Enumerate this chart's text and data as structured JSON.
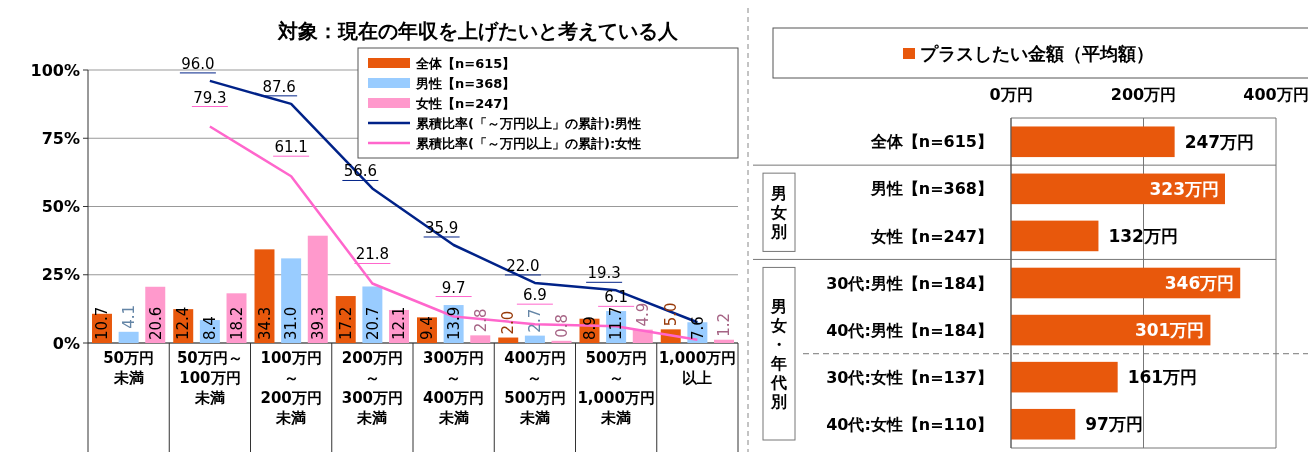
{
  "chart_data": [
    {
      "type": "bar",
      "title": "対象：現在の年収を上げたいと考えている人",
      "categories": [
        "50万円未満",
        "50万円～100万円未満",
        "100万円～200万円未満",
        "200万円～300万円未満",
        "300万円～400万円未満",
        "400万円～500万円未満",
        "500万円～1,000万円未満",
        "1,000万円以上"
      ],
      "series": [
        {
          "name": "全体【n=615】",
          "color": "#e8580c",
          "values": [
            10.7,
            12.4,
            34.3,
            17.2,
            9.4,
            2.0,
            8.9,
            5.0
          ],
          "value_labels": [
            "10.7",
            "12.4",
            "34.3",
            "17.2",
            "9.4",
            "2.0",
            "8.9",
            "5.0"
          ]
        },
        {
          "name": "男性【n=368】",
          "color": "#99ccff",
          "values": [
            4.1,
            8.4,
            31.0,
            20.7,
            13.9,
            2.7,
            11.7,
            7.6
          ],
          "value_labels": [
            "4.1",
            "8.4",
            "31.0",
            "20.7",
            "13.9",
            "2.7",
            "11.7",
            "7.6"
          ]
        },
        {
          "name": "女性【n=247】",
          "color": "#ff99cc",
          "values": [
            20.6,
            18.2,
            39.3,
            12.1,
            2.8,
            0.8,
            4.9,
            1.2
          ],
          "value_labels": [
            "20.6",
            "18.2",
            "39.3",
            "12.1",
            "2.8",
            "0.8",
            "4.9",
            "1.2"
          ]
        },
        {
          "name": "累積比率(「～万円以上」の累計):男性",
          "type": "line",
          "color": "#002288",
          "values": [
            null,
            96.0,
            87.6,
            56.6,
            35.9,
            22.0,
            19.3,
            7.6
          ],
          "value_labels": [
            null,
            "96.0",
            "87.6",
            "56.6",
            "35.9",
            "22.0",
            "19.3",
            null
          ]
        },
        {
          "name": "累積比率(「～万円以上」の累計):女性",
          "type": "line",
          "color": "#ff66cc",
          "values": [
            null,
            79.3,
            61.1,
            21.8,
            9.7,
            6.9,
            6.1,
            1.2
          ],
          "value_labels": [
            null,
            "79.3",
            "61.1",
            "21.8",
            "9.7",
            "6.9",
            "6.1",
            null
          ]
        }
      ],
      "ylim": [
        0,
        100
      ],
      "yticks": [
        {
          "value": 0,
          "label": "0%"
        },
        {
          "value": 25,
          "label": "25%"
        },
        {
          "value": 50,
          "label": "50%"
        },
        {
          "value": 75,
          "label": "75%"
        },
        {
          "value": 100,
          "label": "100%"
        }
      ],
      "grid": "y",
      "legend": "top right",
      "marker": "none",
      "line_style": "solid"
    },
    {
      "type": "bar",
      "orientation": "horizontal",
      "categories": [
        "全体【n=615】",
        "男性【n=368】",
        "女性【n=247】",
        "30代:男性【n=184】",
        "40代:男性【n=184】",
        "30代:女性【n=137】",
        "40代:女性【n=110】"
      ],
      "series": [
        {
          "name": "プラスしたい金額（平均額）",
          "color": "#e8580c",
          "values": [
            247,
            323,
            132,
            346,
            301,
            161,
            97
          ],
          "value_labels": [
            "247万円",
            "323万円",
            "132万円",
            "346万円",
            "301万円",
            "161万円",
            "97万円"
          ]
        }
      ],
      "xlim": [
        0,
        400
      ],
      "xticks": [
        {
          "value": 0,
          "label": "0万円"
        },
        {
          "value": 200,
          "label": "200万円"
        },
        {
          "value": 400,
          "label": "400万円"
        }
      ],
      "grid": "x",
      "legend": "top",
      "annotations": [
        "男女別",
        "男女・年代別"
      ]
    }
  ]
}
